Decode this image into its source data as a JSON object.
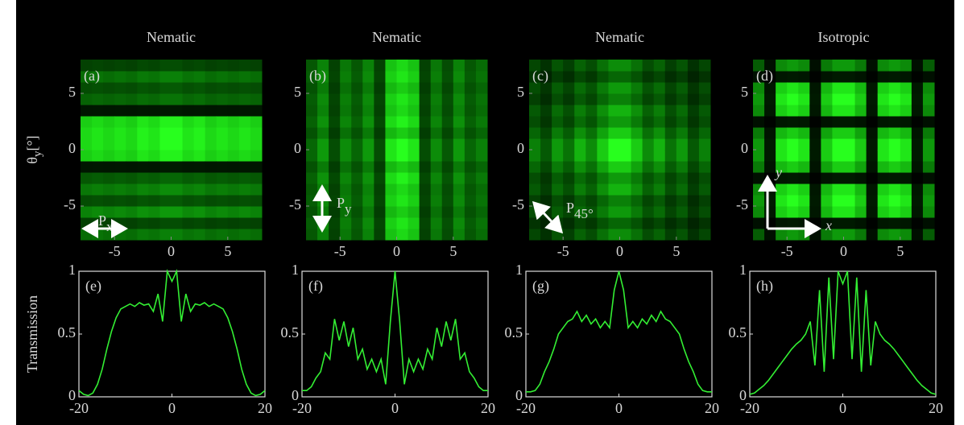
{
  "chart_data": [
    {
      "type": "image",
      "title": "Nematic",
      "panel_label": "(a)",
      "ylabel": "θ",
      "ylabel_sub": "y",
      "ylabel_unit": "[°]",
      "annotation": {
        "text": "P",
        "sub": "x"
      },
      "xlim": [
        -8,
        8
      ],
      "ylim": [
        -8,
        8
      ],
      "xticks": [
        -5,
        0,
        5
      ],
      "yticks": [
        -5,
        0,
        5
      ],
      "x_profile": [
        0.85,
        0.9,
        0.85,
        0.9,
        0.85,
        0.95,
        0.9,
        1,
        1,
        0.9,
        0.95,
        0.85,
        0.9,
        0.85,
        0.9,
        0.85
      ],
      "y_profile": [
        0.5,
        0.3,
        0.6,
        0.35,
        0.55,
        0.4,
        0.1,
        0.95,
        1,
        1,
        0.95,
        0.1,
        0.45,
        0.35,
        0.5,
        0.3
      ]
    },
    {
      "type": "image",
      "title": "Nematic",
      "panel_label": "(b)",
      "annotation": {
        "text": "P",
        "sub": "y"
      },
      "xlim": [
        -8,
        8
      ],
      "ylim": [
        -8,
        8
      ],
      "xticks": [
        -5,
        0,
        5
      ],
      "yticks": [
        -5,
        0,
        5
      ],
      "x_profile": [
        0.4,
        0.6,
        0.3,
        0.55,
        0.4,
        0.6,
        0.3,
        0.9,
        1,
        0.9,
        0.3,
        0.55,
        0.35,
        0.6,
        0.4,
        0.5
      ],
      "y_profile": [
        0.85,
        0.9,
        0.8,
        0.9,
        0.85,
        0.95,
        0.8,
        1,
        1,
        0.8,
        0.95,
        0.85,
        0.9,
        0.8,
        0.9,
        0.85
      ]
    },
    {
      "type": "image",
      "title": "Nematic",
      "panel_label": "(c)",
      "annotation": {
        "text": "P",
        "sub": "45°"
      },
      "xlim": [
        -8,
        8
      ],
      "ylim": [
        -8,
        8
      ],
      "xticks": [
        -5,
        0,
        5
      ],
      "yticks": [
        -5,
        0,
        5
      ],
      "x_profile": [
        0.5,
        0.35,
        0.6,
        0.45,
        0.7,
        0.55,
        0.8,
        1,
        1,
        0.8,
        0.55,
        0.7,
        0.45,
        0.6,
        0.35,
        0.5
      ],
      "y_profile": [
        0.55,
        0.4,
        0.6,
        0.5,
        0.7,
        0.6,
        0.8,
        1,
        1,
        0.8,
        0.6,
        0.7,
        0.5,
        0.6,
        0.4,
        0.55
      ]
    },
    {
      "type": "image",
      "title": "Isotropic",
      "panel_label": "(d)",
      "annotations": [
        "y",
        "x"
      ],
      "xlim": [
        -8,
        8
      ],
      "ylim": [
        -8,
        8
      ],
      "xticks": [
        -5,
        0,
        5
      ],
      "yticks": [
        -5,
        0,
        5
      ],
      "x_profile": [
        0.6,
        0.1,
        0.9,
        1,
        0.9,
        0.1,
        0.8,
        1,
        1,
        0.8,
        0.1,
        0.9,
        1,
        0.9,
        0.1,
        0.6
      ],
      "y_profile": [
        0.6,
        0.1,
        0.9,
        1,
        0.9,
        0.1,
        0.8,
        1,
        1,
        0.8,
        0.1,
        0.9,
        1,
        0.9,
        0.1,
        0.6
      ]
    },
    {
      "type": "line",
      "panel_label": "(e)",
      "ylabel": "Transmission",
      "color": "#33ee33",
      "xlim": [
        -20,
        20
      ],
      "ylim": [
        0,
        1
      ],
      "xticks": [
        -20,
        0,
        20
      ],
      "yticks": [
        0,
        0.5,
        1
      ],
      "x": [
        -20,
        -19,
        -18,
        -17,
        -16,
        -15,
        -14,
        -13,
        -12,
        -11,
        -10,
        -9,
        -8,
        -7,
        -6,
        -5,
        -4,
        -3,
        -2,
        -1,
        0,
        1,
        2,
        3,
        4,
        5,
        6,
        7,
        8,
        9,
        10,
        11,
        12,
        13,
        14,
        15,
        16,
        17,
        18,
        19,
        20
      ],
      "values": [
        0.05,
        0.02,
        0.01,
        0.03,
        0.1,
        0.22,
        0.38,
        0.52,
        0.63,
        0.7,
        0.72,
        0.74,
        0.72,
        0.75,
        0.73,
        0.74,
        0.68,
        0.82,
        0.6,
        1,
        0.92,
        1,
        0.6,
        0.82,
        0.68,
        0.74,
        0.73,
        0.75,
        0.72,
        0.74,
        0.72,
        0.7,
        0.63,
        0.52,
        0.38,
        0.22,
        0.1,
        0.03,
        0.01,
        0.02,
        0.05
      ]
    },
    {
      "type": "line",
      "panel_label": "(f)",
      "color": "#33ee33",
      "xlim": [
        -20,
        20
      ],
      "ylim": [
        0,
        1
      ],
      "xticks": [
        -20,
        0,
        20
      ],
      "yticks": [
        0,
        0.5,
        1
      ],
      "x": [
        -20,
        -19,
        -18,
        -17,
        -16,
        -15,
        -14,
        -13,
        -12,
        -11,
        -10,
        -9,
        -8,
        -7,
        -6,
        -5,
        -4,
        -3,
        -2,
        -1,
        0,
        1,
        2,
        3,
        4,
        5,
        6,
        7,
        8,
        9,
        10,
        11,
        12,
        13,
        14,
        15,
        16,
        17,
        18,
        19,
        20
      ],
      "values": [
        0.05,
        0.05,
        0.08,
        0.15,
        0.2,
        0.35,
        0.3,
        0.62,
        0.45,
        0.6,
        0.4,
        0.55,
        0.3,
        0.38,
        0.22,
        0.3,
        0.2,
        0.3,
        0.1,
        0.6,
        1,
        0.6,
        0.1,
        0.3,
        0.2,
        0.3,
        0.22,
        0.38,
        0.3,
        0.55,
        0.4,
        0.6,
        0.45,
        0.62,
        0.3,
        0.35,
        0.2,
        0.15,
        0.08,
        0.05,
        0.05
      ]
    },
    {
      "type": "line",
      "panel_label": "(g)",
      "color": "#33ee33",
      "xlim": [
        -20,
        20
      ],
      "ylim": [
        0,
        1
      ],
      "xticks": [
        -20,
        0,
        20
      ],
      "yticks": [
        0,
        0.5,
        1
      ],
      "x": [
        -20,
        -19,
        -18,
        -17,
        -16,
        -15,
        -14,
        -13,
        -12,
        -11,
        -10,
        -9,
        -8,
        -7,
        -6,
        -5,
        -4,
        -3,
        -2,
        -1,
        0,
        1,
        2,
        3,
        4,
        5,
        6,
        7,
        8,
        9,
        10,
        11,
        12,
        13,
        14,
        15,
        16,
        17,
        18,
        19,
        20
      ],
      "values": [
        0.04,
        0.04,
        0.05,
        0.1,
        0.2,
        0.28,
        0.38,
        0.5,
        0.55,
        0.6,
        0.62,
        0.68,
        0.6,
        0.65,
        0.58,
        0.62,
        0.55,
        0.6,
        0.55,
        0.85,
        1,
        0.85,
        0.55,
        0.6,
        0.55,
        0.62,
        0.58,
        0.65,
        0.6,
        0.68,
        0.62,
        0.6,
        0.55,
        0.5,
        0.38,
        0.28,
        0.2,
        0.1,
        0.05,
        0.04,
        0.04
      ]
    },
    {
      "type": "line",
      "panel_label": "(h)",
      "color": "#33ee33",
      "xlim": [
        -20,
        20
      ],
      "ylim": [
        0,
        1
      ],
      "xticks": [
        -20,
        0,
        20
      ],
      "yticks": [
        0,
        0.5,
        1
      ],
      "x": [
        -20,
        -19,
        -18,
        -17,
        -16,
        -15,
        -14,
        -13,
        -12,
        -11,
        -10,
        -9,
        -8,
        -7,
        -6,
        -5,
        -4,
        -3,
        -2,
        -1,
        0,
        1,
        2,
        3,
        4,
        5,
        6,
        7,
        8,
        9,
        10,
        11,
        12,
        13,
        14,
        15,
        16,
        17,
        18,
        19,
        20
      ],
      "values": [
        0.02,
        0.03,
        0.06,
        0.09,
        0.13,
        0.18,
        0.23,
        0.28,
        0.33,
        0.38,
        0.42,
        0.45,
        0.5,
        0.6,
        0.25,
        0.85,
        0.2,
        0.95,
        0.3,
        1,
        0.9,
        1,
        0.3,
        0.95,
        0.2,
        0.85,
        0.25,
        0.6,
        0.5,
        0.45,
        0.42,
        0.38,
        0.33,
        0.28,
        0.23,
        0.18,
        0.13,
        0.09,
        0.06,
        0.03,
        0.02
      ]
    }
  ]
}
